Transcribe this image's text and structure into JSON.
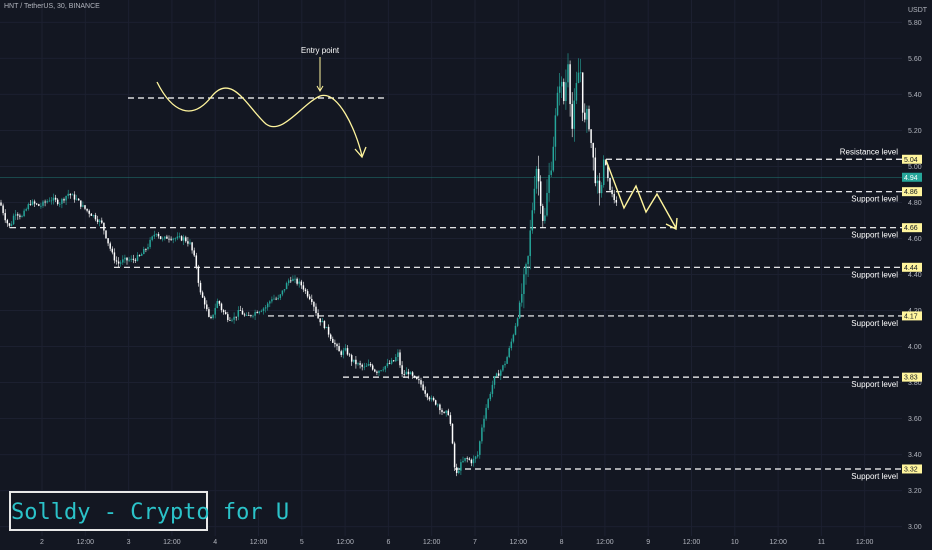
{
  "header": {
    "symbol": "HNT / TetherUS, 30, BINANCE"
  },
  "brand": {
    "text": "Solldy - Crypto for U"
  },
  "colors": {
    "background": "#131722",
    "up": "#26a69a",
    "down": "#ffffff",
    "annotation": "#fff59d",
    "level_line": "#ffffff"
  },
  "chart_data": {
    "type": "candlestick",
    "title": "HNT / TetherUS, 30, BINANCE",
    "y_unit": "USDT",
    "y_ticks": [
      "5.80",
      "5.60",
      "5.40",
      "5.20",
      "5.00",
      "4.80",
      "4.60",
      "4.40",
      "4.20",
      "4.00",
      "3.80",
      "3.60",
      "3.40",
      "3.20",
      "3.00"
    ],
    "x_ticks": [
      "2",
      "12:00",
      "3",
      "12:00",
      "4",
      "12:00",
      "5",
      "12:00",
      "6",
      "12:00",
      "7",
      "12:00",
      "8",
      "12:00",
      "9",
      "12:00",
      "10",
      "12:00",
      "11",
      "12:00"
    ],
    "ylim": [
      2.97,
      5.88
    ],
    "grid": true,
    "price_path": [
      [
        0,
        4.8
      ],
      [
        6,
        4.7
      ],
      [
        10,
        4.66
      ],
      [
        15,
        4.75
      ],
      [
        22,
        4.72
      ],
      [
        30,
        4.8
      ],
      [
        40,
        4.78
      ],
      [
        50,
        4.82
      ],
      [
        60,
        4.8
      ],
      [
        68,
        4.85
      ],
      [
        76,
        4.82
      ],
      [
        82,
        4.78
      ],
      [
        88,
        4.75
      ],
      [
        95,
        4.72
      ],
      [
        102,
        4.68
      ],
      [
        108,
        4.58
      ],
      [
        113,
        4.5
      ],
      [
        118,
        4.46
      ],
      [
        124,
        4.48
      ],
      [
        132,
        4.48
      ],
      [
        140,
        4.5
      ],
      [
        148,
        4.56
      ],
      [
        156,
        4.64
      ],
      [
        162,
        4.59
      ],
      [
        168,
        4.61
      ],
      [
        176,
        4.6
      ],
      [
        184,
        4.6
      ],
      [
        190,
        4.57
      ],
      [
        196,
        4.46
      ],
      [
        200,
        4.3
      ],
      [
        205,
        4.24
      ],
      [
        210,
        4.13
      ],
      [
        214,
        4.2
      ],
      [
        218,
        4.26
      ],
      [
        222,
        4.2
      ],
      [
        228,
        4.16
      ],
      [
        234,
        4.16
      ],
      [
        240,
        4.2
      ],
      [
        246,
        4.16
      ],
      [
        252,
        4.18
      ],
      [
        258,
        4.2
      ],
      [
        266,
        4.22
      ],
      [
        272,
        4.27
      ],
      [
        278,
        4.26
      ],
      [
        284,
        4.32
      ],
      [
        290,
        4.38
      ],
      [
        296,
        4.36
      ],
      [
        302,
        4.34
      ],
      [
        306,
        4.3
      ],
      [
        312,
        4.26
      ],
      [
        318,
        4.16
      ],
      [
        324,
        4.12
      ],
      [
        332,
        4.04
      ],
      [
        340,
        3.96
      ],
      [
        346,
        3.98
      ],
      [
        352,
        3.92
      ],
      [
        358,
        3.9
      ],
      [
        364,
        3.88
      ],
      [
        370,
        3.9
      ],
      [
        376,
        3.86
      ],
      [
        382,
        3.88
      ],
      [
        388,
        3.9
      ],
      [
        394,
        3.92
      ],
      [
        398,
        3.96
      ],
      [
        402,
        3.84
      ],
      [
        408,
        3.86
      ],
      [
        414,
        3.82
      ],
      [
        420,
        3.8
      ],
      [
        426,
        3.74
      ],
      [
        432,
        3.7
      ],
      [
        438,
        3.68
      ],
      [
        444,
        3.62
      ],
      [
        448,
        3.64
      ],
      [
        451,
        3.55
      ],
      [
        454,
        3.35
      ],
      [
        456,
        3.28
      ],
      [
        460,
        3.34
      ],
      [
        466,
        3.38
      ],
      [
        472,
        3.36
      ],
      [
        478,
        3.4
      ],
      [
        482,
        3.56
      ],
      [
        486,
        3.66
      ],
      [
        490,
        3.74
      ],
      [
        494,
        3.82
      ],
      [
        500,
        3.86
      ],
      [
        506,
        3.92
      ],
      [
        512,
        4.04
      ],
      [
        518,
        4.18
      ],
      [
        524,
        4.36
      ],
      [
        528,
        4.48
      ],
      [
        532,
        4.75
      ],
      [
        536,
        5.02
      ],
      [
        540,
        4.86
      ],
      [
        544,
        4.66
      ],
      [
        548,
        4.9
      ],
      [
        552,
        5.05
      ],
      [
        556,
        5.3
      ],
      [
        560,
        5.5
      ],
      [
        564,
        5.36
      ],
      [
        568,
        5.6
      ],
      [
        572,
        5.2
      ],
      [
        576,
        5.42
      ],
      [
        580,
        5.58
      ],
      [
        584,
        5.22
      ],
      [
        588,
        5.3
      ],
      [
        592,
        5.08
      ],
      [
        596,
        4.92
      ],
      [
        600,
        4.8
      ],
      [
        604,
        5.06
      ],
      [
        608,
        4.92
      ],
      [
        612,
        4.84
      ],
      [
        616,
        4.8
      ],
      [
        618,
        4.84
      ]
    ],
    "levels": [
      {
        "price": 5.04,
        "label": "Resistance level"
      },
      {
        "price": 4.86,
        "label": "Support level"
      },
      {
        "price": 4.66,
        "label": "Support level"
      },
      {
        "price": 4.44,
        "label": "Support level"
      },
      {
        "price": 4.17,
        "label": "Support level"
      },
      {
        "price": 3.83,
        "label": "Support level"
      },
      {
        "price": 3.32,
        "label": "Support level"
      }
    ],
    "price_tags": [
      {
        "price": 4.94,
        "label": "4.94",
        "color": "#26a69a"
      }
    ],
    "annotations": [
      {
        "text": "Entry point"
      }
    ]
  }
}
